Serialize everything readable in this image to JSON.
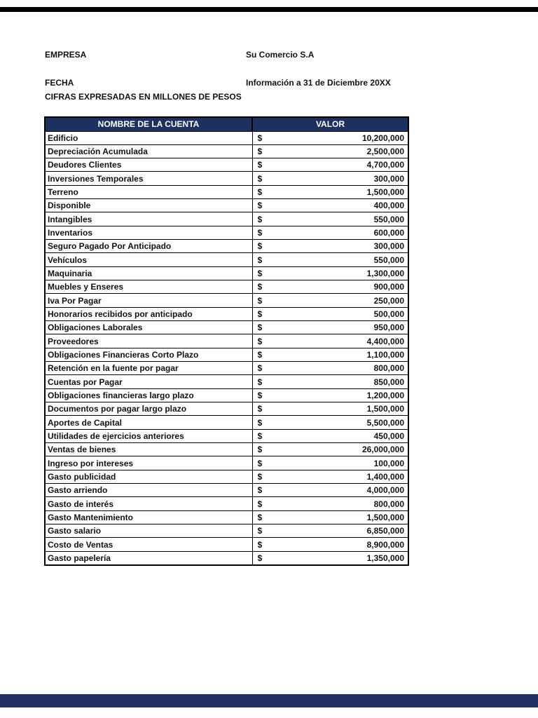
{
  "document": {
    "fields": [
      {
        "label": "EMPRESA",
        "value": "Su Comercio S.A"
      },
      {
        "label": "FECHA",
        "value": "Información a 31 de Diciembre 20XX"
      }
    ],
    "note": "CIFRAS EXPRESADAS EN MILLONES DE PESOS"
  },
  "table": {
    "columns": [
      "NOMBRE DE LA CUENTA",
      "VALOR"
    ],
    "currency_symbol": "$",
    "rows": [
      {
        "name": "Edificio",
        "value": "10,200,000"
      },
      {
        "name": "Depreciación Acumulada",
        "value": "2,500,000"
      },
      {
        "name": "Deudores Clientes",
        "value": "4,700,000"
      },
      {
        "name": "Inversiones Temporales",
        "value": "300,000"
      },
      {
        "name": "Terreno",
        "value": "1,500,000"
      },
      {
        "name": "Disponible",
        "value": "400,000"
      },
      {
        "name": "Intangibles",
        "value": "550,000"
      },
      {
        "name": "Inventarios",
        "value": "600,000"
      },
      {
        "name": "Seguro Pagado Por Anticipado",
        "value": "300,000"
      },
      {
        "name": "Vehículos",
        "value": "550,000"
      },
      {
        "name": "Maquinaria",
        "value": "1,300,000"
      },
      {
        "name": "Muebles y Enseres",
        "value": "900,000"
      },
      {
        "name": "Iva Por Pagar",
        "value": "250,000"
      },
      {
        "name": "Honorarios recibidos por anticipado",
        "value": "500,000"
      },
      {
        "name": "Obligaciones Laborales",
        "value": "950,000"
      },
      {
        "name": "Proveedores",
        "value": "4,400,000"
      },
      {
        "name": "Obligaciones Financieras Corto Plazo",
        "value": "1,100,000"
      },
      {
        "name": "Retención en la fuente por pagar",
        "value": "800,000"
      },
      {
        "name": "Cuentas por Pagar",
        "value": "850,000"
      },
      {
        "name": "Obligaciones financieras largo plazo",
        "value": "1,200,000"
      },
      {
        "name": "Documentos por pagar largo plazo",
        "value": "1,500,000"
      },
      {
        "name": "Aportes de Capital",
        "value": "5,500,000"
      },
      {
        "name": "Utilidades de ejercicios anteriores",
        "value": "450,000"
      },
      {
        "name": "Ventas de bienes",
        "value": "26,000,000"
      },
      {
        "name": "Ingreso por intereses",
        "value": "100,000"
      },
      {
        "name": "Gasto publicidad",
        "value": "1,400,000"
      },
      {
        "name": "Gasto arriendo",
        "value": "4,000,000"
      },
      {
        "name": "Gasto de interés",
        "value": "800,000"
      },
      {
        "name": "Gasto Mantenimiento",
        "value": "1,500,000"
      },
      {
        "name": "Gasto salario",
        "value": "6,850,000"
      },
      {
        "name": "Costo de Ventas",
        "value": "8,900,000"
      },
      {
        "name": "Gasto papelería",
        "value": "1,350,000"
      }
    ]
  },
  "colors": {
    "header_bg": "#1c3160",
    "header_text": "#ffffff",
    "top_bar": "#000000",
    "bottom_bar": "#1e3263"
  }
}
